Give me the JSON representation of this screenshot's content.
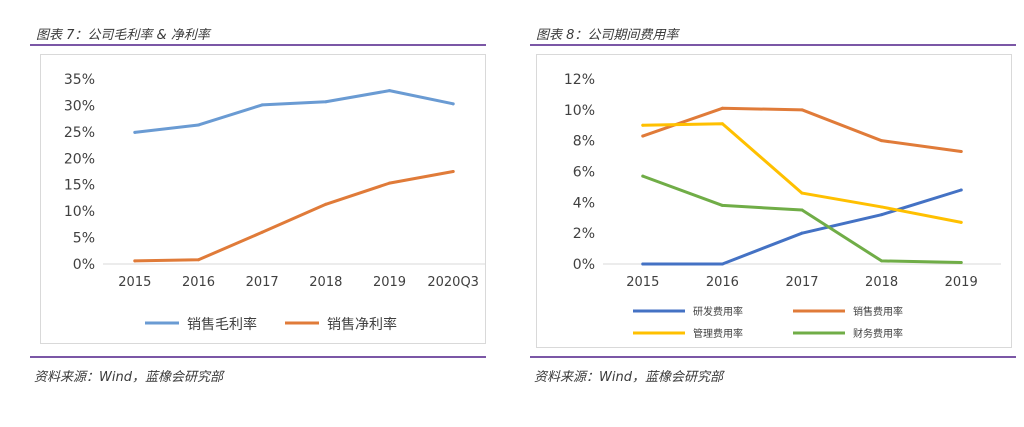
{
  "left": {
    "title": "图表 7：公司毛利率 & 净利率",
    "source": "资料来源：Wind，蓝橡会研究部"
  },
  "right": {
    "title": "图表 8：公司期间费用率",
    "source": "资料来源：Wind，蓝橡会研究部"
  },
  "chart_data": [
    {
      "type": "line",
      "categories": [
        "2015",
        "2016",
        "2017",
        "2018",
        "2019",
        "2020Q3"
      ],
      "ylim": [
        0,
        35
      ],
      "yticks": [
        "0%",
        "5%",
        "10%",
        "15%",
        "20%",
        "25%",
        "30%",
        "35%"
      ],
      "ytick_values": [
        0,
        5,
        10,
        15,
        20,
        25,
        30,
        35
      ],
      "grid": false,
      "legend_position": "bottom",
      "series": [
        {
          "name": "销售毛利率",
          "color": "#6a9bd3",
          "values": [
            24.9,
            26.3,
            30.1,
            30.7,
            32.8,
            30.3
          ]
        },
        {
          "name": "销售净利率",
          "color": "#e07b39",
          "values": [
            0.6,
            0.8,
            6.0,
            11.3,
            15.3,
            17.5
          ]
        }
      ]
    },
    {
      "type": "line",
      "categories": [
        "2015",
        "2016",
        "2017",
        "2018",
        "2019"
      ],
      "ylim": [
        0,
        12
      ],
      "yticks": [
        "0%",
        "2%",
        "4%",
        "6%",
        "8%",
        "10%",
        "12%"
      ],
      "ytick_values": [
        0,
        2,
        4,
        6,
        8,
        10,
        12
      ],
      "grid": false,
      "legend_position": "bottom",
      "series": [
        {
          "name": "研发费用率",
          "color": "#4472c4",
          "values": [
            0.0,
            0.0,
            2.0,
            3.2,
            4.8
          ]
        },
        {
          "name": "销售费用率",
          "color": "#e07b39",
          "values": [
            8.3,
            10.1,
            10.0,
            8.0,
            7.3
          ]
        },
        {
          "name": "管理费用率",
          "color": "#ffc000",
          "values": [
            9.0,
            9.1,
            4.6,
            3.7,
            2.7
          ]
        },
        {
          "name": "财务费用率",
          "color": "#70ad47",
          "values": [
            5.7,
            3.8,
            3.5,
            0.2,
            0.1
          ]
        }
      ]
    }
  ]
}
